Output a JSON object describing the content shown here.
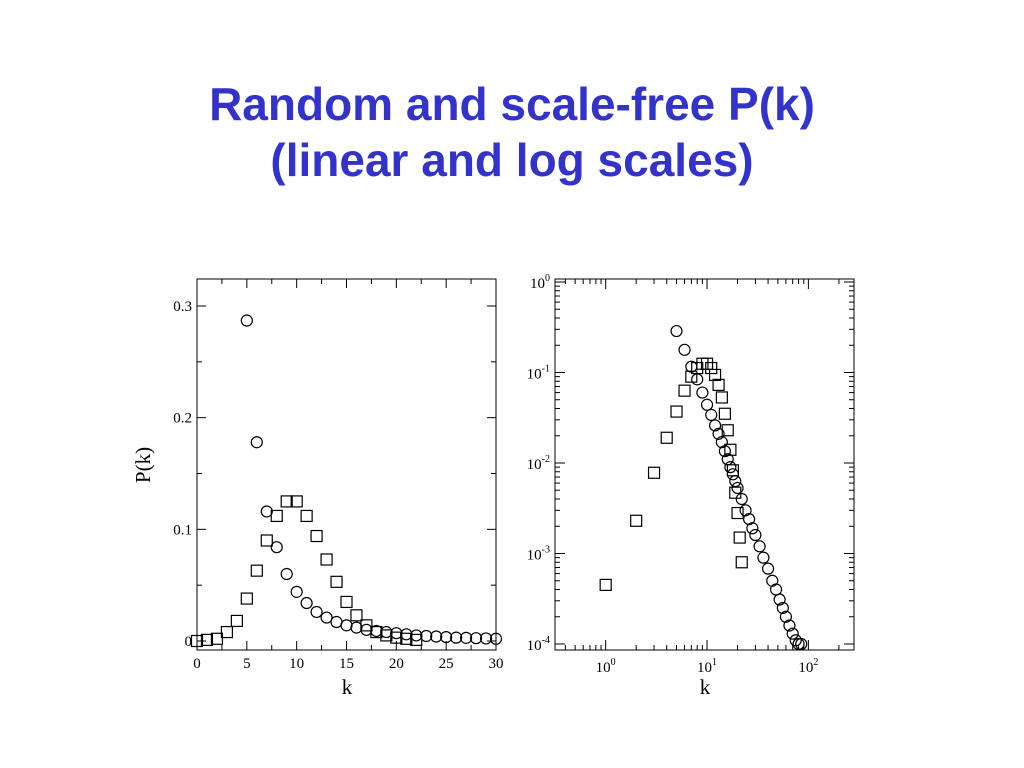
{
  "slide": {
    "title_line1": "Random and scale-free P(k)",
    "title_line2": "(linear and log scales)"
  },
  "chart_data": [
    {
      "type": "scatter",
      "xlabel": "k",
      "ylabel": "P(k)",
      "xlim": [
        0,
        30
      ],
      "ylim": [
        0,
        0.3
      ],
      "xticks": [
        0,
        5,
        10,
        15,
        20,
        25,
        30
      ],
      "yticks": [
        0,
        0.1,
        0.2,
        0.3
      ],
      "xtick_labels": [
        "0",
        "5",
        "10",
        "15",
        "20",
        "25",
        "30"
      ],
      "ytick_labels": [
        "0",
        "0.1",
        "0.2",
        "0.3"
      ],
      "series": [
        {
          "marker": "circle",
          "x": [
            5,
            6,
            7,
            8,
            9,
            10,
            11,
            12,
            13,
            14,
            15,
            16,
            17,
            18,
            19,
            20,
            21,
            22,
            23,
            24,
            25,
            26,
            27,
            28,
            29,
            30
          ],
          "y": [
            0.287,
            0.178,
            0.116,
            0.084,
            0.06,
            0.044,
            0.034,
            0.026,
            0.021,
            0.017,
            0.014,
            0.012,
            0.01,
            0.009,
            0.008,
            0.007,
            0.006,
            0.005,
            0.0045,
            0.004,
            0.0035,
            0.003,
            0.0028,
            0.0025,
            0.0023,
            0.002
          ]
        },
        {
          "marker": "square",
          "x": [
            0,
            1,
            2,
            3,
            4,
            5,
            6,
            7,
            8,
            9,
            10,
            11,
            12,
            13,
            14,
            15,
            16,
            17,
            18,
            19,
            20,
            21,
            22
          ],
          "y": [
            0.0,
            0.001,
            0.002,
            0.008,
            0.018,
            0.038,
            0.063,
            0.09,
            0.112,
            0.125,
            0.125,
            0.112,
            0.094,
            0.073,
            0.053,
            0.035,
            0.023,
            0.014,
            0.008,
            0.005,
            0.003,
            0.002,
            0.001
          ]
        }
      ]
    },
    {
      "type": "scatter",
      "xlabel": "k",
      "ylabel": "",
      "xscale": "log",
      "yscale": "log",
      "xlim_log10": [
        -0.5,
        2.45
      ],
      "ylim_log10": [
        -4,
        0
      ],
      "xtick_labels": [
        {
          "base": "10",
          "exp": "0"
        },
        {
          "base": "10",
          "exp": "1"
        },
        {
          "base": "10",
          "exp": "2"
        }
      ],
      "ytick_labels": [
        {
          "base": "10",
          "exp": "0"
        },
        {
          "base": "10",
          "exp": "-1"
        },
        {
          "base": "10",
          "exp": "-2"
        },
        {
          "base": "10",
          "exp": "-3"
        },
        {
          "base": "10",
          "exp": "-4"
        }
      ],
      "series": [
        {
          "marker": "circle",
          "x": [
            5,
            6,
            7,
            8,
            9,
            10,
            11,
            12,
            13,
            14,
            15,
            16,
            17,
            18,
            19,
            20,
            22,
            24,
            26,
            28,
            30,
            33,
            36,
            40,
            44,
            48,
            52,
            56,
            60,
            65,
            70,
            75,
            80,
            85
          ],
          "y": [
            0.287,
            0.178,
            0.116,
            0.084,
            0.06,
            0.044,
            0.034,
            0.026,
            0.021,
            0.017,
            0.0135,
            0.011,
            0.009,
            0.0075,
            0.0063,
            0.0053,
            0.004,
            0.003,
            0.0024,
            0.0019,
            0.0016,
            0.0012,
            0.0009,
            0.00068,
            0.0005,
            0.0004,
            0.00031,
            0.00025,
            0.0002,
            0.00016,
            0.00013,
            0.00011,
            0.0001,
            0.0001
          ]
        },
        {
          "marker": "square",
          "x": [
            1,
            2,
            3,
            4,
            5,
            6,
            7,
            8,
            9,
            10,
            11,
            12,
            13,
            14,
            15,
            16,
            17,
            18,
            19,
            20,
            21,
            22
          ],
          "y": [
            0.00045,
            0.0023,
            0.0078,
            0.019,
            0.037,
            0.063,
            0.09,
            0.112,
            0.125,
            0.125,
            0.112,
            0.094,
            0.073,
            0.053,
            0.035,
            0.023,
            0.014,
            0.0083,
            0.0047,
            0.0028,
            0.0015,
            0.0008
          ]
        }
      ]
    }
  ]
}
